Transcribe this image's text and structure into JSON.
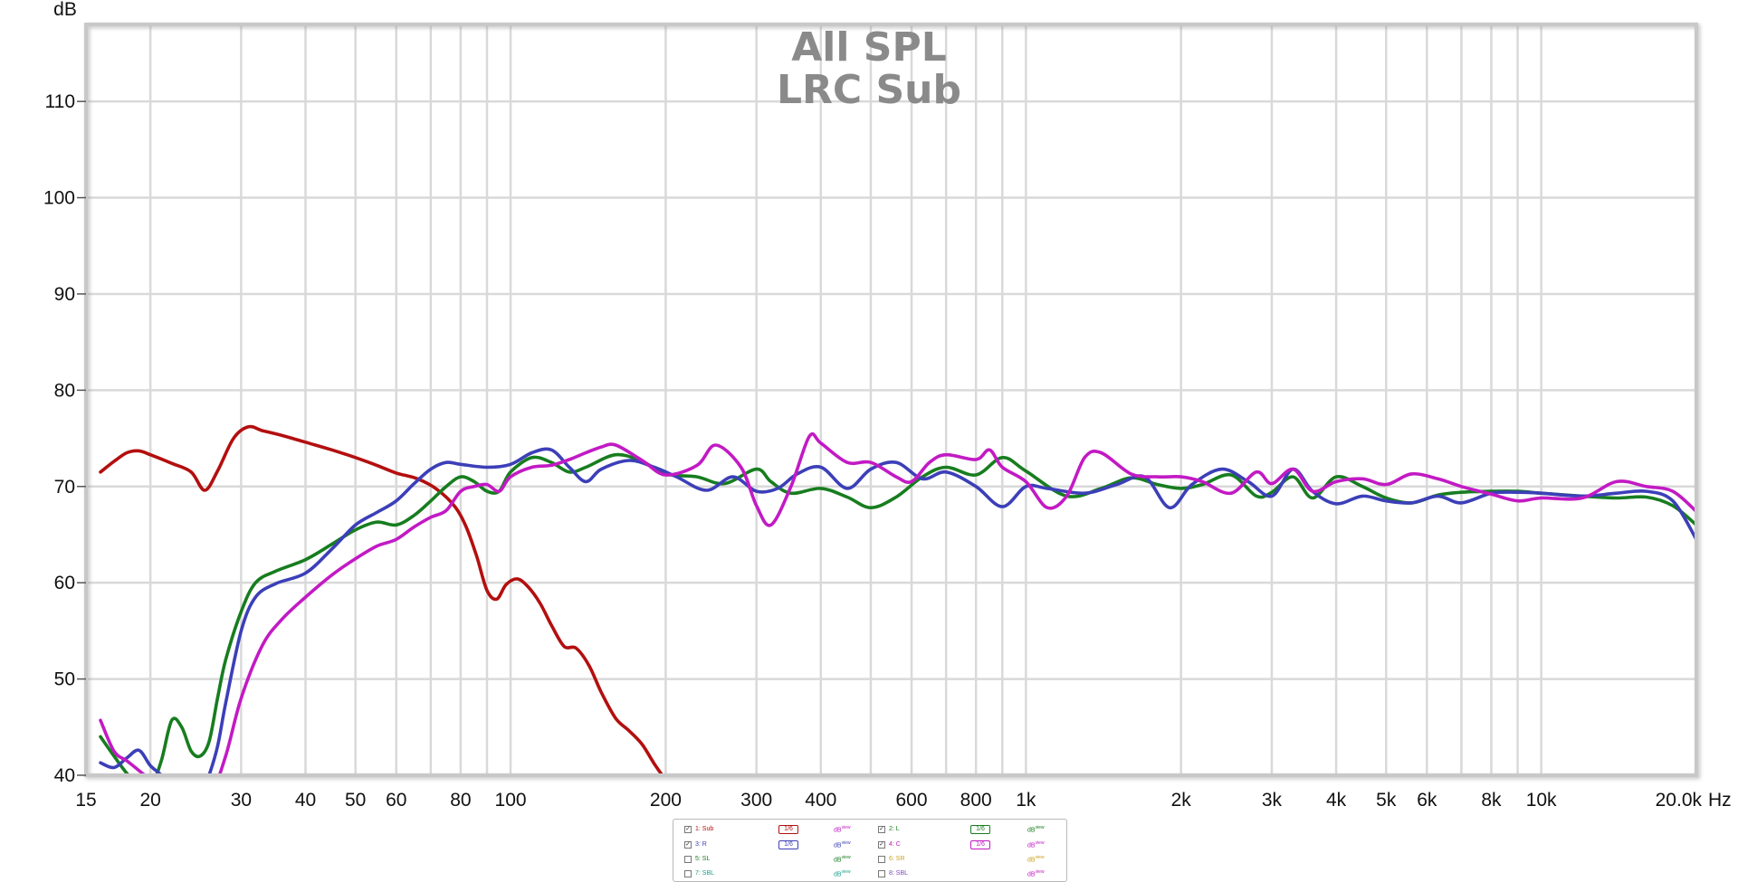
{
  "chart_data": {
    "type": "line",
    "title": "All SPL",
    "subtitle": "LRC Sub",
    "ylabel": "dB",
    "xlabel": "Hz",
    "x_scale": "log",
    "xlim": [
      15,
      20000
    ],
    "ylim": [
      40,
      118
    ],
    "grid": true,
    "x_ticks": [
      15,
      20,
      30,
      40,
      50,
      60,
      80,
      100,
      200,
      300,
      400,
      600,
      800,
      1000,
      2000,
      3000,
      4000,
      5000,
      6000,
      8000,
      10000,
      20000
    ],
    "x_tick_labels": [
      "15",
      "20",
      "30",
      "40",
      "50",
      "60",
      "80",
      "100",
      "200",
      "300",
      "400",
      "600",
      "800",
      "1k",
      "2k",
      "3k",
      "4k",
      "5k",
      "6k",
      "8k",
      "10k",
      "20.0k"
    ],
    "y_ticks": [
      40,
      50,
      60,
      70,
      80,
      90,
      100,
      110
    ],
    "y_tick_labels": [
      "40",
      "50",
      "60",
      "70",
      "80",
      "90",
      "100",
      "110"
    ],
    "series": [
      {
        "name": "1: Sub",
        "color": "#b30f0f",
        "x": [
          16,
          17,
          18,
          19,
          20,
          22,
          24,
          25.5,
          27,
          29,
          31,
          33,
          36,
          40,
          45,
          50,
          55,
          60,
          66,
          72,
          78,
          82,
          86,
          90,
          94,
          98,
          103,
          108,
          114,
          120,
          127,
          134,
          142,
          150,
          160,
          170,
          180,
          190,
          200,
          210
        ],
        "y": [
          71.5,
          72.6,
          73.5,
          73.7,
          73.3,
          72.4,
          71.5,
          69.6,
          71.6,
          75.0,
          76.2,
          75.8,
          75.3,
          74.6,
          73.8,
          73.0,
          72.2,
          71.4,
          70.8,
          69.7,
          67.9,
          65.8,
          62.7,
          59.2,
          58.3,
          59.8,
          60.4,
          59.6,
          57.9,
          55.6,
          53.4,
          53.2,
          51.4,
          48.6,
          45.9,
          44.6,
          43.2,
          41.2,
          39.5,
          38.0
        ]
      },
      {
        "name": "2: L",
        "color": "#177d1f",
        "x": [
          16,
          17,
          18,
          19,
          20,
          21,
          22,
          23,
          24,
          25,
          26,
          27,
          28,
          30,
          32,
          35,
          40,
          45,
          50,
          55,
          60,
          65,
          70,
          75,
          80,
          85,
          90,
          95,
          100,
          110,
          120,
          130,
          140,
          160,
          180,
          200,
          230,
          260,
          300,
          320,
          350,
          400,
          450,
          500,
          560,
          630,
          700,
          800,
          900,
          1000,
          1200,
          1400,
          1600,
          1800,
          2000,
          2200,
          2500,
          2800,
          3000,
          3300,
          3600,
          4000,
          4500,
          5000,
          5600,
          6300,
          7000,
          8000,
          9000,
          10000,
          12000,
          14000,
          16000,
          18000,
          20000
        ],
        "y": [
          44.0,
          42.0,
          40.2,
          38.9,
          38.7,
          41.5,
          45.7,
          45.0,
          42.5,
          42.0,
          43.5,
          48.0,
          52.0,
          57.0,
          60.0,
          61.2,
          62.4,
          64.0,
          65.5,
          66.3,
          66.0,
          67.0,
          68.5,
          70.0,
          71.0,
          70.5,
          69.5,
          69.5,
          71.5,
          73.0,
          72.5,
          71.5,
          72.0,
          73.3,
          72.6,
          71.3,
          71.0,
          70.3,
          71.8,
          70.5,
          69.3,
          69.8,
          68.9,
          67.8,
          68.9,
          71.0,
          72.0,
          71.2,
          73.0,
          71.6,
          69.0,
          69.8,
          70.9,
          70.2,
          69.8,
          70.2,
          71.2,
          69.0,
          69.4,
          71.0,
          68.8,
          71.0,
          70.0,
          68.8,
          68.3,
          69.1,
          69.4,
          69.5,
          69.5,
          69.3,
          69.0,
          68.8,
          68.9,
          68.0,
          66.0
        ]
      },
      {
        "name": "3: R",
        "color": "#3c3fb8",
        "x": [
          16,
          17,
          18,
          19,
          20,
          21,
          22,
          23,
          24,
          25,
          26,
          27,
          28,
          30,
          32,
          35,
          40,
          45,
          50,
          55,
          60,
          65,
          70,
          75,
          80,
          90,
          100,
          110,
          120,
          130,
          140,
          150,
          170,
          190,
          210,
          240,
          270,
          300,
          330,
          360,
          400,
          450,
          500,
          560,
          630,
          700,
          800,
          900,
          1000,
          1100,
          1300,
          1500,
          1700,
          1900,
          2100,
          2400,
          2700,
          3000,
          3300,
          3600,
          4000,
          4500,
          5000,
          5600,
          6300,
          7000,
          8000,
          9000,
          10000,
          12000,
          14000,
          16000,
          18000,
          20000
        ],
        "y": [
          41.3,
          40.8,
          41.8,
          42.6,
          41.0,
          40.0,
          38.6,
          37.5,
          37.0,
          37.5,
          40.0,
          43.0,
          47.5,
          55.0,
          58.5,
          59.9,
          61.0,
          63.5,
          66.0,
          67.3,
          68.5,
          70.3,
          71.8,
          72.5,
          72.3,
          72.0,
          72.3,
          73.5,
          73.8,
          72.0,
          70.5,
          71.8,
          72.7,
          72.0,
          71.0,
          69.6,
          71.0,
          69.5,
          69.8,
          71.3,
          72.0,
          69.8,
          71.8,
          72.5,
          70.8,
          71.5,
          70.0,
          67.9,
          70.0,
          69.8,
          69.3,
          70.2,
          71.0,
          67.8,
          70.2,
          71.8,
          70.5,
          69.0,
          71.8,
          69.5,
          68.2,
          69.0,
          68.5,
          68.3,
          69.0,
          68.3,
          69.3,
          69.4,
          69.3,
          69.0,
          69.3,
          69.5,
          68.5,
          64.5
        ]
      },
      {
        "name": "4: C",
        "color": "#c21ac4",
        "x": [
          16,
          17,
          18,
          19,
          20,
          22,
          24,
          26,
          28,
          30,
          33,
          36,
          40,
          45,
          50,
          55,
          60,
          65,
          70,
          75,
          80,
          85,
          90,
          95,
          100,
          110,
          120,
          130,
          140,
          150,
          160,
          180,
          200,
          230,
          250,
          280,
          300,
          320,
          350,
          380,
          400,
          450,
          500,
          560,
          600,
          650,
          700,
          800,
          850,
          900,
          1000,
          1100,
          1200,
          1300,
          1400,
          1600,
          1800,
          2000,
          2200,
          2500,
          2800,
          3000,
          3300,
          3600,
          4000,
          4500,
          5000,
          5600,
          6300,
          7000,
          8000,
          9000,
          10000,
          12000,
          14000,
          16000,
          18000,
          20000
        ],
        "y": [
          45.7,
          42.5,
          41.5,
          40.5,
          39.5,
          37.5,
          37.0,
          37.5,
          42.0,
          48.0,
          53.5,
          56.2,
          58.5,
          60.8,
          62.5,
          63.8,
          64.5,
          65.8,
          66.8,
          67.5,
          69.5,
          70.0,
          70.2,
          69.5,
          71.0,
          72.0,
          72.2,
          72.8,
          73.5,
          74.1,
          74.3,
          72.7,
          71.2,
          72.2,
          74.3,
          72.0,
          68.0,
          66.0,
          70.0,
          75.2,
          74.5,
          72.5,
          72.5,
          71.0,
          70.5,
          72.5,
          73.3,
          72.8,
          73.8,
          72.0,
          70.5,
          67.8,
          69.0,
          73.0,
          73.5,
          71.3,
          71.0,
          71.0,
          70.5,
          69.3,
          71.5,
          70.3,
          71.8,
          69.5,
          70.5,
          70.8,
          70.2,
          71.3,
          70.8,
          70.0,
          69.2,
          68.5,
          68.8,
          68.8,
          70.5,
          70.0,
          69.5,
          67.4
        ]
      }
    ]
  },
  "legend": {
    "rows": [
      {
        "checked": true,
        "label": "1: Sub",
        "color": "#b30f0f",
        "smoothing": "1/6",
        "db_label": "dB",
        "db_sub": "view",
        "db_color": "#c21ac4"
      },
      {
        "checked": true,
        "label": "2: L",
        "color": "#177d1f",
        "smoothing": "1/6",
        "db_label": "dB",
        "db_sub": "view",
        "db_color": "#177d1f"
      },
      {
        "checked": true,
        "label": "3: R",
        "color": "#3c3fb8",
        "smoothing": "1/6",
        "db_label": "dB",
        "db_sub": "view",
        "db_color": "#3c3fb8"
      },
      {
        "checked": true,
        "label": "4: C",
        "color": "#c21ac4",
        "smoothing": "1/6",
        "db_label": "dB",
        "db_sub": "view",
        "db_color": "#c21ac4"
      },
      {
        "checked": false,
        "label": "5: SL",
        "color": "#177d1f",
        "smoothing": "",
        "db_label": "dB",
        "db_sub": "view",
        "db_color": "#177d1f"
      },
      {
        "checked": false,
        "label": "6: SR",
        "color": "#c8a21a",
        "smoothing": "",
        "db_label": "dB",
        "db_sub": "view",
        "db_color": "#c8a21a"
      },
      {
        "checked": false,
        "label": "7: SBL",
        "color": "#1aa08a",
        "smoothing": "",
        "db_label": "dB",
        "db_sub": "view",
        "db_color": "#1aa08a"
      },
      {
        "checked": false,
        "label": "8: SBL",
        "color": "#7a4bb8",
        "smoothing": "",
        "db_label": "dB",
        "db_sub": "view",
        "db_color": "#c21ac4"
      }
    ]
  }
}
